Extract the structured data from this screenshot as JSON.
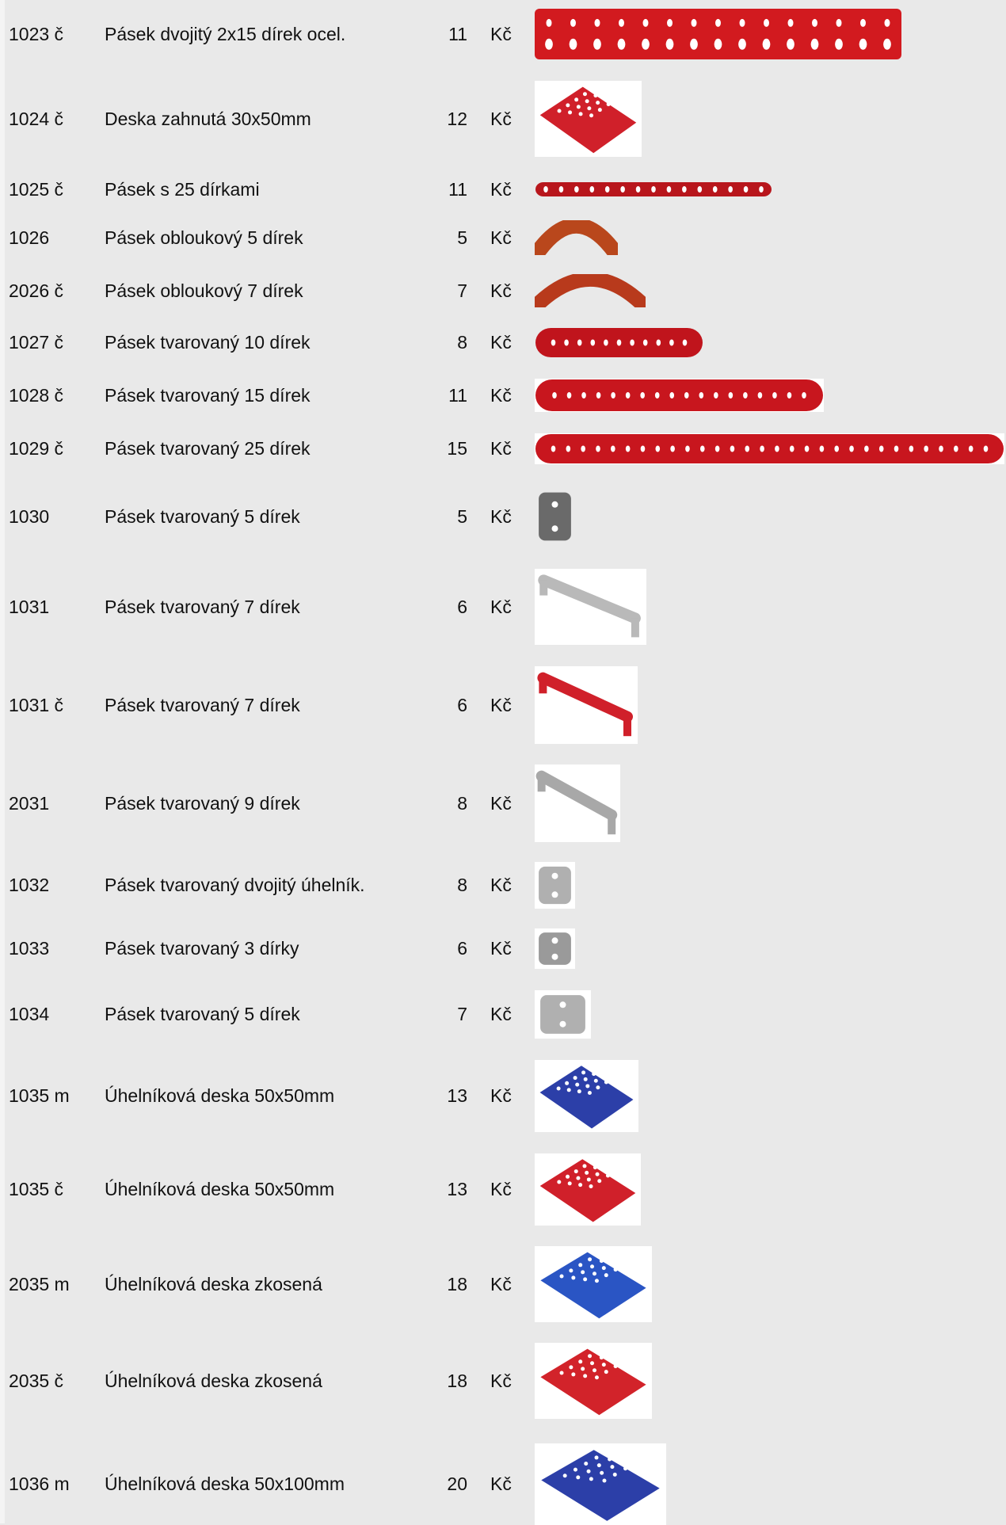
{
  "rows": [
    {
      "code": "1023 č",
      "name": "Pásek dvojitý 2x15 dírek ocel.",
      "price": 11,
      "currency": "Kč"
    },
    {
      "code": "1024 č",
      "name": "Deska zahnutá 30x50mm",
      "price": 12,
      "currency": "Kč"
    },
    {
      "code": "1025 č",
      "name": "Pásek s 25 dírkami",
      "price": 11,
      "currency": "Kč"
    },
    {
      "code": "1026",
      "name": "Pásek obloukový 5 dírek",
      "price": 5,
      "currency": "Kč"
    },
    {
      "code": "2026 č",
      "name": "Pásek obloukový 7 dírek",
      "price": 7,
      "currency": "Kč"
    },
    {
      "code": "1027 č",
      "name": "Pásek tvarovaný 10 dírek",
      "price": 8,
      "currency": "Kč"
    },
    {
      "code": "1028 č",
      "name": "Pásek tvarovaný 15 dírek",
      "price": 11,
      "currency": "Kč"
    },
    {
      "code": "1029 č",
      "name": "Pásek tvarovaný 25 dírek",
      "price": 15,
      "currency": "Kč"
    },
    {
      "code": "1030",
      "name": "Pásek tvarovaný 5 dírek",
      "price": 5,
      "currency": "Kč"
    },
    {
      "code": "1031",
      "name": "Pásek tvarovaný 7 dírek",
      "price": 6,
      "currency": "Kč"
    },
    {
      "code": "1031 č",
      "name": "Pásek tvarovaný 7 dírek",
      "price": 6,
      "currency": "Kč"
    },
    {
      "code": "2031",
      "name": "Pásek tvarovaný 9 dírek",
      "price": 8,
      "currency": "Kč"
    },
    {
      "code": "1032",
      "name": "Pásek tvarovaný dvojitý úhelník.",
      "price": 8,
      "currency": "Kč"
    },
    {
      "code": "1033",
      "name": "Pásek tvarovaný 3 dírky",
      "price": 6,
      "currency": "Kč"
    },
    {
      "code": "1034",
      "name": "Pásek tvarovaný 5 dírek",
      "price": 7,
      "currency": "Kč"
    },
    {
      "code": "1035 m",
      "name": "Úhelníková deska 50x50mm",
      "price": 13,
      "currency": "Kč"
    },
    {
      "code": "1035 č",
      "name": "Úhelníková deska 50x50mm",
      "price": 13,
      "currency": "Kč"
    },
    {
      "code": "2035 m",
      "name": "Úhelníková deska zkosená",
      "price": 18,
      "currency": "Kč"
    },
    {
      "code": "2035 č",
      "name": "Úhelníková deska zkosená",
      "price": 18,
      "currency": "Kč"
    },
    {
      "code": "1036 m",
      "name": "Úhelníková deska 50x100mm",
      "price": 20,
      "currency": "Kč"
    }
  ]
}
